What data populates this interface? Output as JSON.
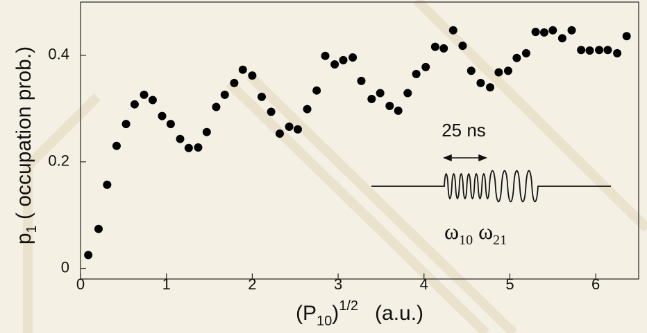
{
  "chart_data": {
    "type": "scatter",
    "ylabel": {
      "base": "p",
      "sub": "1",
      "rest": " ( occupation prob.)"
    },
    "xlabel": {
      "base": "(P",
      "sub": "10",
      "close": ")",
      "sup": "1/2",
      "unit": "(a.u.)"
    },
    "annotation": {
      "pulse": "25 ns",
      "omega": "ω",
      "sub1": "10",
      "sub2": "21"
    },
    "color": "#000000",
    "xlim": [
      0,
      6.5
    ],
    "ylim": [
      -0.02,
      0.5
    ],
    "xticks": [
      0,
      1,
      2,
      3,
      4,
      5,
      6
    ],
    "yticks": [
      0,
      0.2,
      0.4
    ],
    "x": [
      0.09,
      0.21,
      0.31,
      0.42,
      0.53,
      0.63,
      0.74,
      0.84,
      0.95,
      1.05,
      1.16,
      1.26,
      1.37,
      1.47,
      1.58,
      1.68,
      1.79,
      1.89,
      2.0,
      2.11,
      2.22,
      2.32,
      2.43,
      2.53,
      2.64,
      2.75,
      2.85,
      2.96,
      3.06,
      3.17,
      3.27,
      3.39,
      3.49,
      3.6,
      3.7,
      3.81,
      3.91,
      4.02,
      4.13,
      4.23,
      4.34,
      4.45,
      4.55,
      4.66,
      4.77,
      4.87,
      4.98,
      5.08,
      5.19,
      5.3,
      5.4,
      5.5,
      5.61,
      5.72,
      5.83,
      5.93,
      6.04,
      6.14,
      6.25,
      6.36
    ],
    "values": [
      0.025,
      0.074,
      0.157,
      0.23,
      0.271,
      0.308,
      0.326,
      0.316,
      0.286,
      0.271,
      0.243,
      0.226,
      0.227,
      0.256,
      0.303,
      0.326,
      0.348,
      0.373,
      0.362,
      0.322,
      0.294,
      0.253,
      0.266,
      0.261,
      0.299,
      0.334,
      0.399,
      0.383,
      0.391,
      0.396,
      0.352,
      0.318,
      0.329,
      0.305,
      0.296,
      0.329,
      0.365,
      0.378,
      0.416,
      0.413,
      0.447,
      0.418,
      0.371,
      0.348,
      0.34,
      0.368,
      0.371,
      0.395,
      0.404,
      0.444,
      0.443,
      0.447,
      0.432,
      0.447,
      0.41,
      0.409,
      0.41,
      0.41,
      0.404,
      0.436
    ]
  }
}
